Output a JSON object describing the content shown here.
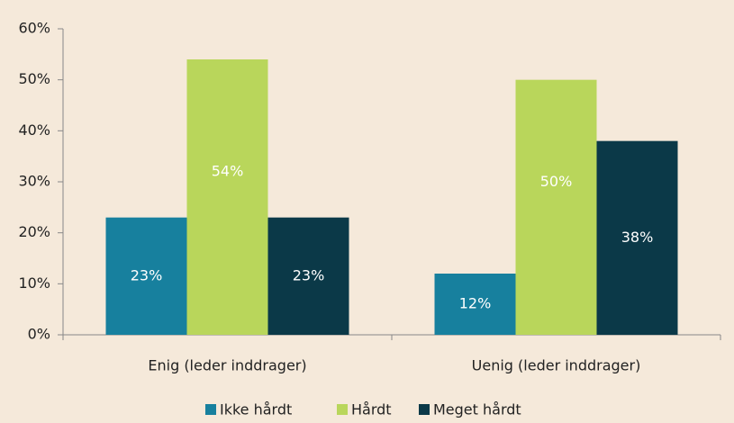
{
  "chart_data": {
    "type": "bar",
    "categories": [
      "Enig (leder inddrager)",
      "Uenig (leder inddrager)"
    ],
    "series": [
      {
        "name": "Ikke hårdt",
        "color": "#17809e",
        "values": [
          23,
          12
        ],
        "value_labels": [
          "23%",
          "12%"
        ]
      },
      {
        "name": "Hårdt",
        "color": "#b9d65b",
        "values": [
          54,
          50
        ],
        "value_labels": [
          "54%",
          "50%"
        ]
      },
      {
        "name": "Meget hårdt",
        "color": "#0b3948",
        "values": [
          23,
          38
        ],
        "value_labels": [
          "23%",
          "38%"
        ]
      }
    ],
    "ylim": [
      0,
      60
    ],
    "yticks": [
      {
        "value": 0,
        "label": "0%"
      },
      {
        "value": 10,
        "label": "10%"
      },
      {
        "value": 20,
        "label": "20%"
      },
      {
        "value": 30,
        "label": "30%"
      },
      {
        "value": 40,
        "label": "40%"
      },
      {
        "value": 50,
        "label": "50%"
      },
      {
        "value": 60,
        "label": "60%"
      }
    ],
    "grid": false,
    "legend": "bottom"
  }
}
